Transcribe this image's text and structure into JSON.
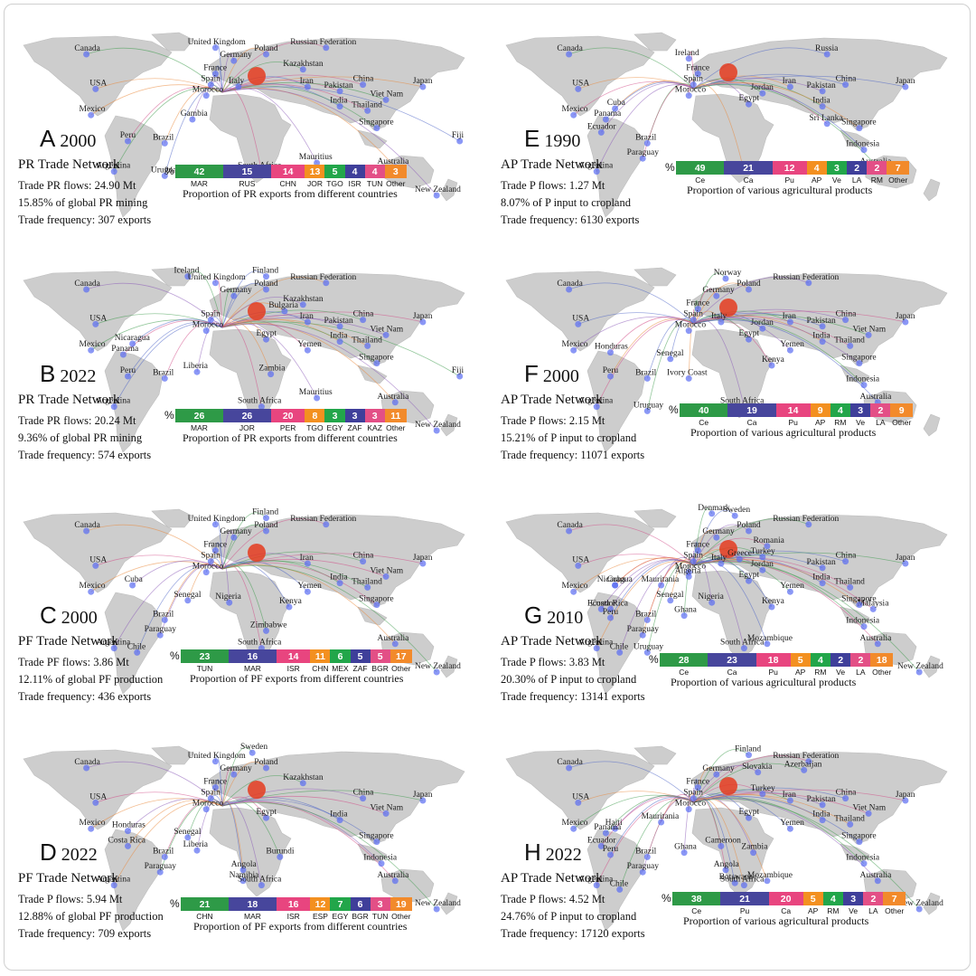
{
  "colors": [
    "#2e9a47",
    "#47469c",
    "#e8457f",
    "#f39020",
    "#22a64a",
    "#3f3f9a",
    "#e34f86",
    "#f28a2b"
  ],
  "chart_data": [
    {
      "panel": "A",
      "year": "2000",
      "title": "PR Trade Network",
      "stats": [
        "Trade PR flows: 24.90 Mt",
        "15.85% of global PR mining",
        "Trade frequency: 307 exports"
      ],
      "type": "bar",
      "categories": [
        "MAR",
        "RUS",
        "CHN",
        "JOR",
        "TGO",
        "ISR",
        "TUN",
        "Other"
      ],
      "values": [
        42,
        15,
        14,
        13,
        5,
        4,
        4,
        3
      ],
      "caption": "Proportion of PR exports from different countries",
      "countries": [
        "Canada",
        "United Kingdom",
        "Russian Federation",
        "Poland",
        "Germany",
        "Kazakhstan",
        "France",
        "China",
        "USA",
        "Spain",
        "Italy",
        "Iran",
        "Pakistan",
        "Japan",
        "Morocco",
        "Viet Nam",
        "India",
        "Thailand",
        "Mexico",
        "Gambia",
        "Singapore",
        "Fiji",
        "Peru",
        "Brazil",
        "Mauritius",
        "Argentina",
        "Uruguay",
        "South Africa",
        "Australia",
        "New Zealand"
      ]
    },
    {
      "panel": "B",
      "year": "2022",
      "title": "PR Trade Network",
      "stats": [
        "Trade PR flows: 20.24 Mt",
        "9.36% of global PR mining",
        "Trade frequency: 574 exports"
      ],
      "type": "bar",
      "categories": [
        "MAR",
        "JOR",
        "PER",
        "TGO",
        "EGY",
        "ZAF",
        "KAZ",
        "Other"
      ],
      "values": [
        26,
        26,
        20,
        8,
        3,
        3,
        3,
        11
      ],
      "caption": "Proportion of PR exports from different countries",
      "countries": [
        "Iceland",
        "Finland",
        "United Kingdom",
        "Russian Federation",
        "Canada",
        "Germany",
        "Poland",
        "Spain",
        "Bulgaria",
        "Kazakhstan",
        "USA",
        "Iran",
        "Japan",
        "Egypt",
        "Pakistan",
        "China",
        "Morocco",
        "Yemen",
        "India",
        "Viet Nam",
        "Mexico",
        "Nicaragua",
        "Panama",
        "Thailand",
        "Liberia",
        "Singapore",
        "Peru",
        "Brazil",
        "Zambia",
        "Mauritius",
        "Fiji",
        "Argentina",
        "South Africa",
        "Australia",
        "New Zealand"
      ]
    },
    {
      "panel": "C",
      "year": "2000",
      "title": "PF Trade Network",
      "stats": [
        "Trade PF flows: 3.86 Mt",
        "12.11% of global PF production",
        "Trade frequency: 436 exports"
      ],
      "type": "bar",
      "categories": [
        "TUN",
        "MAR",
        "ISR",
        "CHN",
        "MEX",
        "ZAF",
        "BGR",
        "Other"
      ],
      "values": [
        23,
        16,
        14,
        11,
        6,
        5,
        5,
        17
      ],
      "caption": "Proportion of PF exports from different countries",
      "countries": [
        "Finland",
        "United Kingdom",
        "Russian Federation",
        "Canada",
        "Germany",
        "Poland",
        "France",
        "USA",
        "Spain",
        "Iran",
        "China",
        "Morocco",
        "Japan",
        "Mexico",
        "Cuba",
        "India",
        "Yemen",
        "Viet Nam",
        "Senegal",
        "Nigeria",
        "Thailand",
        "Kenya",
        "Singapore",
        "Brazil",
        "Paraguay",
        "Zimbabwe",
        "Chile",
        "South Africa",
        "Australia",
        "Argentina",
        "New Zealand"
      ]
    },
    {
      "panel": "D",
      "year": "2022",
      "title": "PF Trade Network",
      "stats": [
        "Trade P flows: 5.94 Mt",
        "12.88% of global PF production",
        "Trade frequency: 709 exports"
      ],
      "type": "bar",
      "categories": [
        "CHN",
        "MAR",
        "ISR",
        "ESP",
        "EGY",
        "BGR",
        "TUN",
        "Other"
      ],
      "values": [
        21,
        18,
        16,
        12,
        7,
        6,
        3,
        19
      ],
      "caption": "Proportion of PF exports from different countries",
      "countries": [
        "Sweden",
        "United Kingdom",
        "Germany",
        "Poland",
        "Canada",
        "Kazakhstan",
        "France",
        "USA",
        "Spain",
        "China",
        "Japan",
        "Morocco",
        "Egypt",
        "Mexico",
        "Honduras",
        "Senegal",
        "India",
        "Viet Nam",
        "Costa Rica",
        "Liberia",
        "Burundi",
        "Singapore",
        "Brazil",
        "Angola",
        "Indonesia",
        "Paraguay",
        "Namibia",
        "Australia",
        "Argentina",
        "South Africa",
        "New Zealand"
      ]
    },
    {
      "panel": "E",
      "year": "1990",
      "title": "AP Trade Network",
      "stats": [
        "Trade P flows: 1.27 Mt",
        "8.07% of P input to cropland",
        "Trade frequency: 6130 exports"
      ],
      "type": "bar",
      "categories": [
        "Ce",
        "Ca",
        "Pu",
        "AP",
        "Ve",
        "LA",
        "RM",
        "Other"
      ],
      "values": [
        49,
        21,
        12,
        4,
        3,
        2,
        2,
        7
      ],
      "caption": "Proportion of various agricultural products",
      "countries": [
        "Canada",
        "Russia",
        "Ireland",
        "USA",
        "France",
        "Spain",
        "Japan",
        "Morocco",
        "Iran",
        "Pakistan",
        "Jordan",
        "China",
        "Mexico",
        "Cuba",
        "Egypt",
        "India",
        "Panama",
        "Sri Lanka",
        "Singapore",
        "Ecuador",
        "Brazil",
        "Indonesia",
        "Paraguay",
        "South Africa",
        "Argentina",
        "Australia"
      ]
    },
    {
      "panel": "F",
      "year": "2000",
      "title": "AP Trade Network",
      "stats": [
        "Trade P flows: 2.15 Mt",
        "15.21% of P input to cropland",
        "Trade frequency: 11071 exports"
      ],
      "type": "bar",
      "categories": [
        "Ce",
        "Ca",
        "Pu",
        "AP",
        "RM",
        "Ve",
        "LA",
        "Other"
      ],
      "values": [
        40,
        19,
        14,
        9,
        4,
        3,
        2,
        9
      ],
      "caption": "Proportion of various agricultural products",
      "countries": [
        "Norway",
        "Canada",
        "Germany",
        "Poland",
        "Russian Federation",
        "France",
        "USA",
        "Spain",
        "Italy",
        "China",
        "Iran",
        "Jordan",
        "Japan",
        "Morocco",
        "Mexico",
        "Egypt",
        "Pakistan",
        "Honduras",
        "India",
        "Yemen",
        "Viet Nam",
        "Senegal",
        "Thailand",
        "Ivory Coast",
        "Singapore",
        "Indonesia",
        "Brazil",
        "Kenya",
        "Peru",
        "South Africa",
        "Uruguay",
        "Australia",
        "Argentina"
      ]
    },
    {
      "panel": "G",
      "year": "2010",
      "title": "AP Trade Network",
      "stats": [
        "Trade P flows: 3.83 Mt",
        "20.30% of P input to cropland",
        "Trade frequency: 13141 exports"
      ],
      "type": "bar",
      "categories": [
        "Ce",
        "Ca",
        "Pu",
        "AP",
        "RM",
        "Ve",
        "LA",
        "Other"
      ],
      "values": [
        28,
        23,
        18,
        5,
        4,
        2,
        2,
        18
      ],
      "caption": "Proportion of various agricultural products",
      "countries": [
        "Denmark",
        "Sweden",
        "Canada",
        "Germany",
        "Poland",
        "Russian Federation",
        "France",
        "Romania",
        "Italy",
        "Spain",
        "Turkey",
        "China",
        "USA",
        "Greece",
        "Jordan",
        "Japan",
        "Morocco",
        "Algeria",
        "Mexico",
        "Mauritania",
        "Egypt",
        "Pakistan",
        "Cuba",
        "Senegal",
        "Nigeria",
        "Yemen",
        "India",
        "Thailand",
        "Nicaragua",
        "Costa Rica",
        "Ghana",
        "Kenya",
        "Malaysia",
        "Singapore",
        "Ecuador",
        "Indonesia",
        "Peru",
        "Brazil",
        "Paraguay",
        "Chile",
        "Uruguay",
        "Mozambique",
        "Australia",
        "Argentina",
        "South Africa",
        "New Zealand"
      ]
    },
    {
      "panel": "H",
      "year": "2022",
      "title": "AP Trade Network",
      "stats": [
        "Trade P flows: 4.52 Mt",
        "24.76% of P input to cropland",
        "Trade frequency: 17120 exports"
      ],
      "type": "bar",
      "categories": [
        "Ce",
        "Pu",
        "Ca",
        "AP",
        "RM",
        "Ve",
        "LA",
        "Other"
      ],
      "values": [
        38,
        21,
        20,
        5,
        4,
        3,
        2,
        7
      ],
      "caption": "Proportion of various agricultural products",
      "countries": [
        "Finland",
        "Canada",
        "Russian Federation",
        "Germany",
        "Slovakia",
        "Azerbaijan",
        "France",
        "Turkey",
        "USA",
        "Spain",
        "Iran",
        "China",
        "Japan",
        "Morocco",
        "Pakistan",
        "Mexico",
        "Egypt",
        "Mauritania",
        "India",
        "Haiti",
        "Panama",
        "Yemen",
        "Viet Nam",
        "Thailand",
        "Ghana",
        "Cameroon",
        "Singapore",
        "Ecuador",
        "Brazil",
        "Zambia",
        "Indonesia",
        "Peru",
        "Angola",
        "Mozambique",
        "Paraguay",
        "Chile",
        "Botswana",
        "Argentina",
        "South Africa",
        "Australia",
        "New Zealand"
      ]
    }
  ]
}
